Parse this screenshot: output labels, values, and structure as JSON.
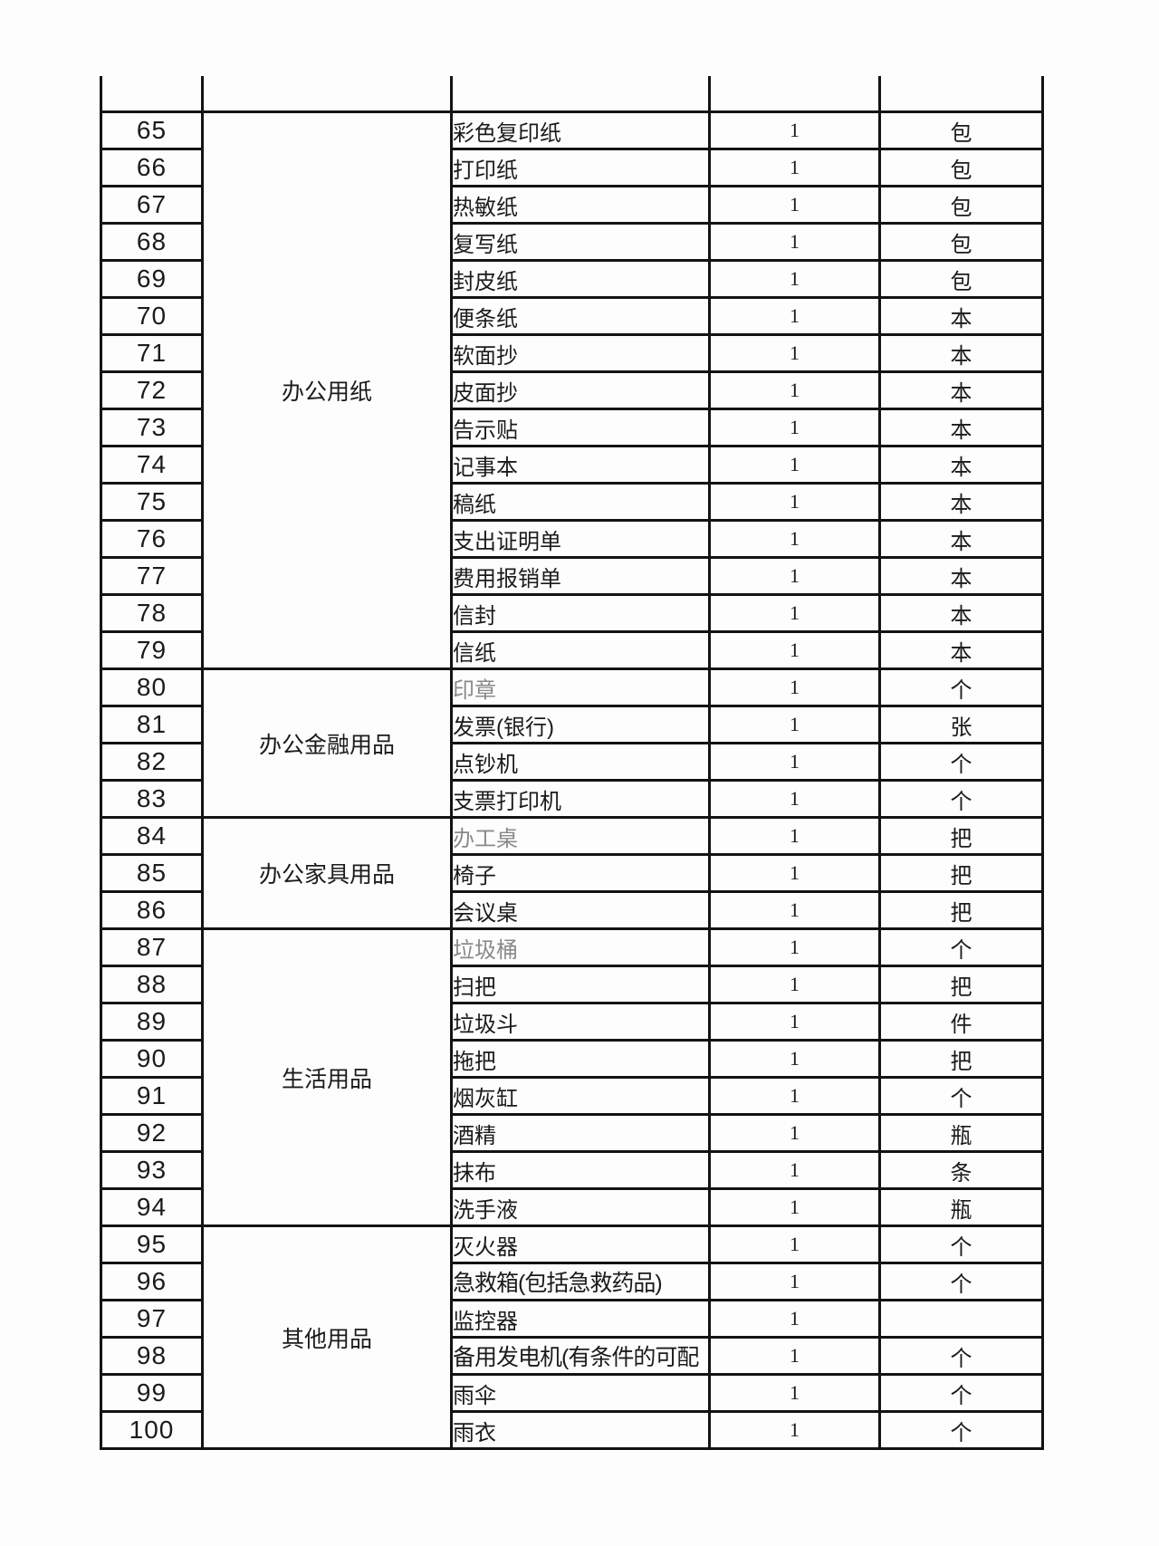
{
  "table": {
    "quantity_default": "1",
    "colors": {
      "text": "#1b1b1b",
      "muted_item_text": "#8a8a8a",
      "grid_border": "#131313",
      "page_background": "#fdfdfd"
    },
    "categories": [
      {
        "label": "办公用纸",
        "start": 65,
        "span": 15,
        "open_top": true
      },
      {
        "label": "办公金融用品",
        "start": 80,
        "span": 4
      },
      {
        "label": "办公家具用品",
        "start": 84,
        "span": 3
      },
      {
        "label": "生活用品",
        "start": 87,
        "span": 8
      },
      {
        "label": "其他用品",
        "start": 95,
        "span": 6
      }
    ],
    "rows": [
      {
        "num": "65",
        "item": "彩色复印纸",
        "qty": "1",
        "unit": "包"
      },
      {
        "num": "66",
        "item": "打印纸",
        "qty": "1",
        "unit": "包"
      },
      {
        "num": "67",
        "item": "热敏纸",
        "qty": "1",
        "unit": "包"
      },
      {
        "num": "68",
        "item": "复写纸",
        "qty": "1",
        "unit": "包"
      },
      {
        "num": "69",
        "item": "封皮纸",
        "qty": "1",
        "unit": "包"
      },
      {
        "num": "70",
        "item": "便条纸",
        "qty": "1",
        "unit": "本"
      },
      {
        "num": "71",
        "item": "软面抄",
        "qty": "1",
        "unit": "本"
      },
      {
        "num": "72",
        "item": "皮面抄",
        "qty": "1",
        "unit": "本"
      },
      {
        "num": "73",
        "item": "告示贴",
        "qty": "1",
        "unit": "本"
      },
      {
        "num": "74",
        "item": "记事本",
        "qty": "1",
        "unit": "本"
      },
      {
        "num": "75",
        "item": "稿纸",
        "qty": "1",
        "unit": "本"
      },
      {
        "num": "76",
        "item": "支出证明单",
        "qty": "1",
        "unit": "本"
      },
      {
        "num": "77",
        "item": "费用报销单",
        "qty": "1",
        "unit": "本"
      },
      {
        "num": "78",
        "item": "信封",
        "qty": "1",
        "unit": "本"
      },
      {
        "num": "79",
        "item": "信纸",
        "qty": "1",
        "unit": "本"
      },
      {
        "num": "80",
        "item": "印章",
        "qty": "1",
        "unit": "个",
        "muted": true
      },
      {
        "num": "81",
        "item": "发票(银行)",
        "qty": "1",
        "unit": "张"
      },
      {
        "num": "82",
        "item": "点钞机",
        "qty": "1",
        "unit": "个"
      },
      {
        "num": "83",
        "item": "支票打印机",
        "qty": "1",
        "unit": "个"
      },
      {
        "num": "84",
        "item": "办工桌",
        "qty": "1",
        "unit": "把",
        "muted": true
      },
      {
        "num": "85",
        "item": "椅子",
        "qty": "1",
        "unit": "把"
      },
      {
        "num": "86",
        "item": "会议桌",
        "qty": "1",
        "unit": "把"
      },
      {
        "num": "87",
        "item": "垃圾桶",
        "qty": "1",
        "unit": "个",
        "muted": true
      },
      {
        "num": "88",
        "item": "扫把",
        "qty": "1",
        "unit": "把"
      },
      {
        "num": "89",
        "item": "垃圾斗",
        "qty": "1",
        "unit": "件"
      },
      {
        "num": "90",
        "item": "拖把",
        "qty": "1",
        "unit": "把"
      },
      {
        "num": "91",
        "item": "烟灰缸",
        "qty": "1",
        "unit": "个"
      },
      {
        "num": "92",
        "item": "酒精",
        "qty": "1",
        "unit": "瓶"
      },
      {
        "num": "93",
        "item": "抹布",
        "qty": "1",
        "unit": "条"
      },
      {
        "num": "94",
        "item": "洗手液",
        "qty": "1",
        "unit": "瓶"
      },
      {
        "num": "95",
        "item": "灭火器",
        "qty": "1",
        "unit": "个"
      },
      {
        "num": "96",
        "item": "急救箱(包括急救药品)",
        "qty": "1",
        "unit": "个"
      },
      {
        "num": "97",
        "item": "监控器",
        "qty": "1",
        "unit": ""
      },
      {
        "num": "98",
        "item": "备用发电机(有条件的可配",
        "qty": "1",
        "unit": "个"
      },
      {
        "num": "99",
        "item": "雨伞",
        "qty": "1",
        "unit": "个"
      },
      {
        "num": "100",
        "item": "雨衣",
        "qty": "1",
        "unit": "个"
      }
    ]
  }
}
